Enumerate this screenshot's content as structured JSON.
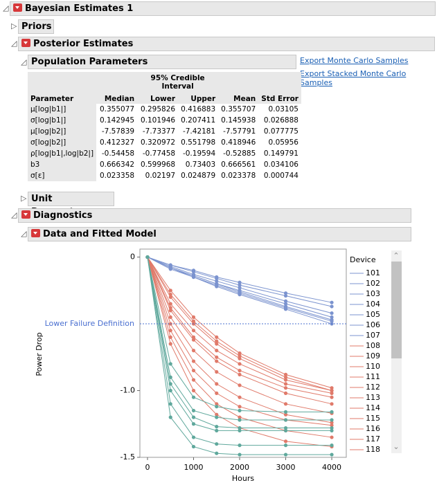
{
  "report": {
    "title": "Bayesian Estimates 1",
    "priors": "Priors",
    "posterior": "Posterior Estimates",
    "population": "Population Parameters",
    "unit": "Unit Parameters",
    "diagnostics": "Diagnostics",
    "fitted": "Data and Fitted Model"
  },
  "links": [
    "Export Monte Carlo Samples",
    "Export Stacked Monte Carlo Samples"
  ],
  "table": {
    "group_header": "95% Credible Interval",
    "columns": [
      "Parameter",
      "Median",
      "Lower",
      "Upper",
      "Mean",
      "Std Error"
    ],
    "rows": [
      [
        "μ[log|b1|]",
        "0.355077",
        "0.295826",
        "0.416883",
        "0.355707",
        "0.03105"
      ],
      [
        "σ[log|b1|]",
        "0.142945",
        "0.101946",
        "0.207411",
        "0.145938",
        "0.026888"
      ],
      [
        "μ[log|b2|]",
        "-7.57839",
        "-7.73377",
        "-7.42181",
        "-7.57791",
        "0.077775"
      ],
      [
        "σ[log|b2|]",
        "0.412327",
        "0.320972",
        "0.551798",
        "0.418946",
        "0.05956"
      ],
      [
        "ρ[log|b1|,log|b2|]",
        "-0.54458",
        "-0.77458",
        "-0.19594",
        "-0.52885",
        "0.149791"
      ],
      [
        "b3",
        "0.666342",
        "0.599968",
        "0.73403",
        "0.666561",
        "0.034106"
      ],
      [
        "σ[ε]",
        "0.023358",
        "0.02197",
        "0.024879",
        "0.023378",
        "0.000744"
      ]
    ]
  },
  "chart_data": {
    "type": "line",
    "x_label": "Hours",
    "y_label": "Power Drop",
    "legend_title": "Device",
    "x": [
      0,
      500,
      1000,
      1500,
      2000,
      3000,
      4000
    ],
    "xlim": [
      -165,
      4315
    ],
    "xticks": [
      0,
      1000,
      2000,
      3000,
      4000
    ],
    "ylim": [
      -1.5,
      0.06
    ],
    "yticks": [
      0,
      {
        "value": -1,
        "label": "-1.0"
      },
      -1.5
    ],
    "reference_line": {
      "label": "Lower Failure Definition",
      "value": -0.5,
      "color": "#4a6fd0"
    },
    "series": [
      {
        "name": "101",
        "color": "#7b93cf",
        "values": [
          0,
          -0.06,
          -0.1,
          -0.15,
          -0.19,
          -0.27,
          -0.34
        ]
      },
      {
        "name": "102",
        "color": "#7b93cf",
        "values": [
          0,
          -0.06,
          -0.11,
          -0.16,
          -0.21,
          -0.29,
          -0.37
        ]
      },
      {
        "name": "103",
        "color": "#7b93cf",
        "values": [
          0,
          -0.07,
          -0.13,
          -0.18,
          -0.23,
          -0.33,
          -0.42
        ]
      },
      {
        "name": "104",
        "color": "#7b93cf",
        "values": [
          0,
          -0.08,
          -0.14,
          -0.2,
          -0.25,
          -0.35,
          -0.45
        ]
      },
      {
        "name": "105",
        "color": "#7b93cf",
        "values": [
          0,
          -0.08,
          -0.14,
          -0.2,
          -0.26,
          -0.37,
          -0.47
        ]
      },
      {
        "name": "106",
        "color": "#7b93cf",
        "values": [
          0,
          -0.09,
          -0.15,
          -0.22,
          -0.28,
          -0.39,
          -0.5
        ]
      },
      {
        "name": "107",
        "color": "#7b93cf",
        "values": [
          0,
          -0.08,
          -0.15,
          -0.21,
          -0.27,
          -0.38,
          -0.48
        ]
      },
      {
        "name": "108",
        "color": "#e07a6a",
        "values": [
          0,
          -0.35,
          -0.55,
          -0.7,
          -0.8,
          -0.95,
          -1.02
        ]
      },
      {
        "name": "109",
        "color": "#e07a6a",
        "values": [
          0,
          -0.3,
          -0.5,
          -0.65,
          -0.76,
          -0.92,
          -1.0
        ]
      },
      {
        "name": "110",
        "color": "#e07a6a",
        "values": [
          0,
          -0.4,
          -0.62,
          -0.78,
          -0.88,
          -1.02,
          -1.1
        ]
      },
      {
        "name": "111",
        "color": "#e07a6a",
        "values": [
          0,
          -0.45,
          -0.7,
          -0.86,
          -0.96,
          -1.1,
          -1.17
        ]
      },
      {
        "name": "112",
        "color": "#e07a6a",
        "values": [
          0,
          -0.5,
          -0.78,
          -0.95,
          -1.05,
          -1.18,
          -1.24
        ]
      },
      {
        "name": "113",
        "color": "#e07a6a",
        "values": [
          0,
          -0.25,
          -0.45,
          -0.6,
          -0.72,
          -0.88,
          -0.98
        ]
      },
      {
        "name": "114",
        "color": "#e07a6a",
        "values": [
          0,
          -0.55,
          -0.85,
          -1.02,
          -1.12,
          -1.22,
          -1.26
        ]
      },
      {
        "name": "115",
        "color": "#e07a6a",
        "values": [
          0,
          -0.6,
          -0.92,
          -1.1,
          -1.2,
          -1.3,
          -1.35
        ]
      },
      {
        "name": "116",
        "color": "#e07a6a",
        "values": [
          0,
          -0.38,
          -0.6,
          -0.75,
          -0.85,
          -0.98,
          -1.05
        ]
      },
      {
        "name": "117",
        "color": "#e07a6a",
        "values": [
          0,
          -0.65,
          -1.0,
          -1.18,
          -1.28,
          -1.38,
          -1.42
        ]
      },
      {
        "name": "118",
        "color": "#e07a6a",
        "values": [
          0,
          -0.28,
          -0.48,
          -0.63,
          -0.74,
          -0.9,
          -1.0
        ]
      },
      {
        "color": "#5fa89c",
        "values": [
          0,
          -0.9,
          -1.15,
          -1.2,
          -1.22,
          -1.22,
          -1.22
        ]
      },
      {
        "color": "#5fa89c",
        "values": [
          0,
          -1.0,
          -1.25,
          -1.3,
          -1.3,
          -1.3,
          -1.3
        ]
      },
      {
        "color": "#5fa89c",
        "values": [
          0,
          -1.1,
          -1.35,
          -1.4,
          -1.41,
          -1.41,
          -1.41
        ]
      },
      {
        "color": "#5fa89c",
        "values": [
          0,
          -0.8,
          -1.05,
          -1.12,
          -1.15,
          -1.16,
          -1.16
        ]
      },
      {
        "color": "#5fa89c",
        "values": [
          0,
          -1.2,
          -1.42,
          -1.47,
          -1.48,
          -1.48,
          -1.48
        ]
      },
      {
        "color": "#5fa89c",
        "values": [
          0,
          -0.95,
          -1.2,
          -1.27,
          -1.28,
          -1.28,
          -1.28
        ]
      }
    ]
  }
}
